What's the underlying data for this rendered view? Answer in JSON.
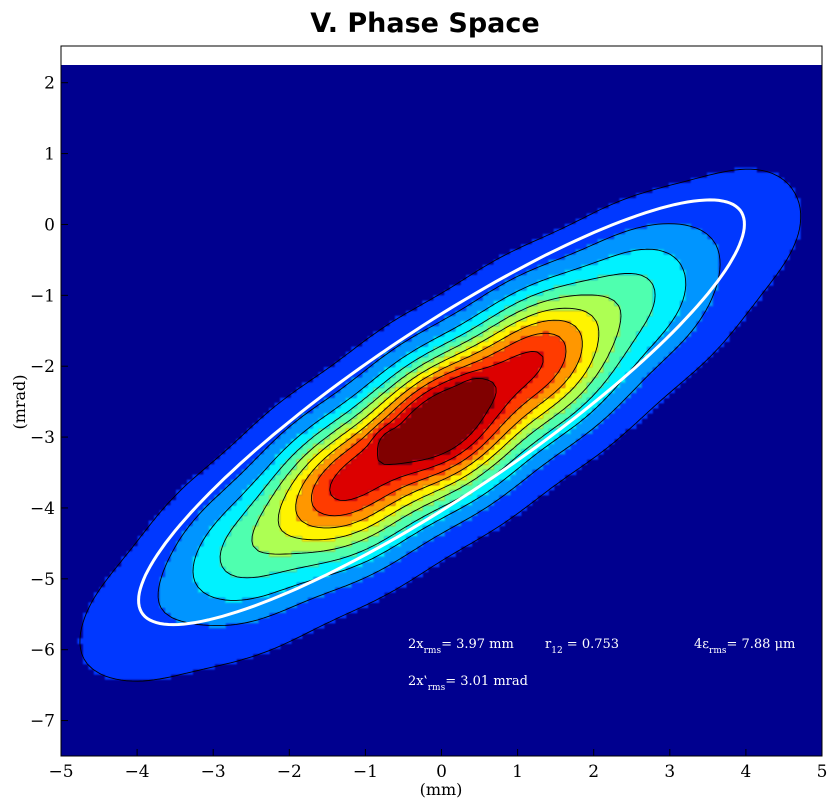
{
  "chart_data": {
    "type": "contour",
    "title": "V. Phase Space",
    "xlabel": "(mm)",
    "ylabel": "(mrad)",
    "xlim": [
      -5,
      5
    ],
    "ylim": [
      -7.5,
      2.25
    ],
    "xticks": [
      -5,
      -4,
      -3,
      -2,
      -1,
      0,
      1,
      2,
      3,
      4,
      5
    ],
    "yticks": [
      -7,
      -6,
      -5,
      -4,
      -3,
      -2,
      -1,
      0,
      1,
      2
    ],
    "colormap": "jet",
    "background_color": "#00008f",
    "distribution": {
      "center": [
        0.0,
        -2.85
      ],
      "major_axis_angle_deg": 36,
      "sigma_major": 2.25,
      "sigma_minor": 0.62,
      "peaks": [
        [
          -0.7,
          -3.05
        ],
        [
          0.45,
          -2.35
        ]
      ]
    },
    "rms_ellipse": {
      "center": [
        0.0,
        -2.65
      ],
      "semi_major": 4.85,
      "semi_minor": 1.14,
      "angle_deg": 36,
      "color": "#ffffff"
    },
    "annotations": {
      "x_rms": {
        "prefix": "2x",
        "sub": "rms",
        "value": "= 3.97 mm"
      },
      "r12": {
        "prefix": "r",
        "sub": "12",
        "value": " = 0.753"
      },
      "emittance": {
        "prefix": "4ε",
        "sub": "rms",
        "value": "= 7.88 μm"
      },
      "xp_rms": {
        "prefix": "2x‛",
        "sub": "rms",
        "value": "= 3.01 mrad"
      }
    }
  }
}
